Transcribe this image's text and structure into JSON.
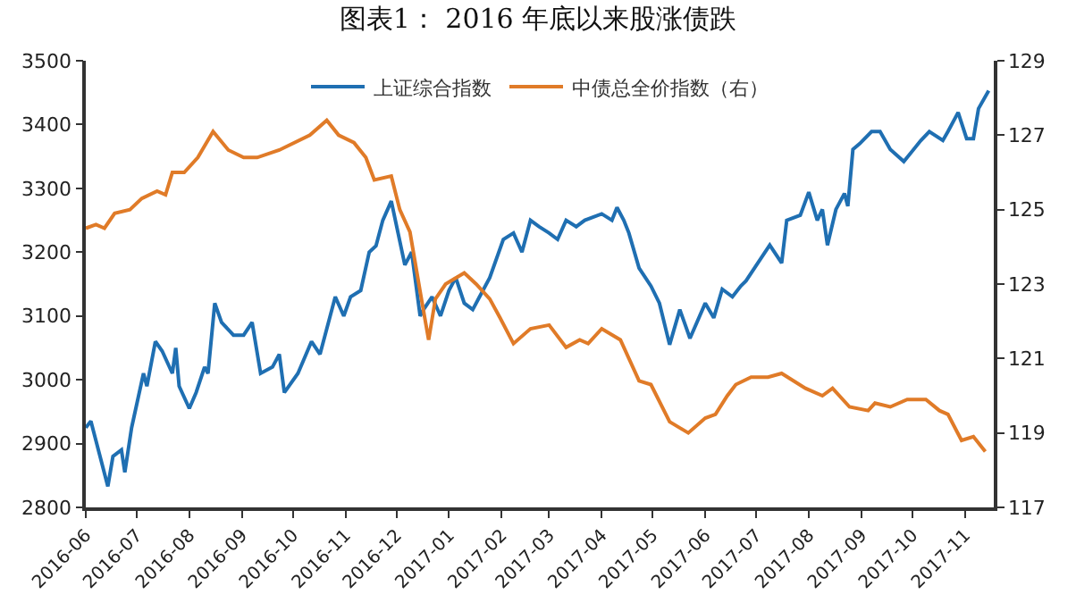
{
  "chart_data": {
    "type": "line",
    "title": "图表1： 2016 年底以来股涨债跌",
    "xlim": [
      "2016-06-01",
      "2017-11-18"
    ],
    "xticks": [
      "2016-06",
      "2016-07",
      "2016-08",
      "2016-09",
      "2016-10",
      "2016-11",
      "2016-12",
      "2017-01",
      "2017-02",
      "2017-03",
      "2017-04",
      "2017-05",
      "2017-06",
      "2017-07",
      "2017-08",
      "2017-09",
      "2017-10",
      "2017-11"
    ],
    "ylim": [
      2800,
      3500
    ],
    "yticks": [
      2800,
      2900,
      3000,
      3100,
      3200,
      3300,
      3400,
      3500
    ],
    "y2lim": [
      117,
      129
    ],
    "y2ticks": [
      117,
      119,
      121,
      123,
      125,
      127,
      129
    ],
    "grid": false,
    "legend": "top",
    "marker": "none",
    "line_style": "solid",
    "series": [
      {
        "name": "上证综合指数",
        "color": "#1f6fb2",
        "x": [
          "2016-06-01",
          "2016-06-04",
          "2016-06-14",
          "2016-06-17",
          "2016-06-22",
          "2016-06-24",
          "2016-06-28",
          "2016-07-05",
          "2016-07-07",
          "2016-07-12",
          "2016-07-16",
          "2016-07-22",
          "2016-07-24",
          "2016-07-26",
          "2016-08-01",
          "2016-08-05",
          "2016-08-10",
          "2016-08-12",
          "2016-08-16",
          "2016-08-20",
          "2016-08-27",
          "2016-09-02",
          "2016-09-07",
          "2016-09-12",
          "2016-09-19",
          "2016-09-23",
          "2016-09-26",
          "2016-10-04",
          "2016-10-12",
          "2016-10-17",
          "2016-10-21",
          "2016-10-26",
          "2016-10-31",
          "2016-11-04",
          "2016-11-10",
          "2016-11-15",
          "2016-11-19",
          "2016-11-23",
          "2016-11-28",
          "2016-12-02",
          "2016-12-06",
          "2016-12-10",
          "2016-12-15",
          "2016-12-17",
          "2016-12-22",
          "2016-12-27",
          "2017-01-01",
          "2017-01-05",
          "2017-01-10",
          "2017-01-15",
          "2017-01-19",
          "2017-01-25",
          "2017-02-02",
          "2017-02-08",
          "2017-02-13",
          "2017-02-18",
          "2017-02-23",
          "2017-03-01",
          "2017-03-06",
          "2017-03-11",
          "2017-03-17",
          "2017-03-22",
          "2017-04-01",
          "2017-04-07",
          "2017-04-10",
          "2017-04-14",
          "2017-04-17",
          "2017-04-23",
          "2017-04-30",
          "2017-05-05",
          "2017-05-11",
          "2017-05-17",
          "2017-05-23",
          "2017-06-01",
          "2017-06-06",
          "2017-06-11",
          "2017-06-17",
          "2017-06-22",
          "2017-06-25",
          "2017-07-02",
          "2017-07-09",
          "2017-07-16",
          "2017-07-19",
          "2017-07-27",
          "2017-08-01",
          "2017-08-06",
          "2017-08-09",
          "2017-08-12",
          "2017-08-17",
          "2017-08-22",
          "2017-08-24",
          "2017-08-27",
          "2017-08-31",
          "2017-09-07",
          "2017-09-12",
          "2017-09-18",
          "2017-09-26",
          "2017-10-06",
          "2017-10-11",
          "2017-10-19",
          "2017-10-22",
          "2017-10-28",
          "2017-11-02",
          "2017-11-06",
          "2017-11-09",
          "2017-11-15"
        ],
        "values": [
          2925,
          2935,
          2833,
          2880,
          2890,
          2855,
          2925,
          3010,
          2990,
          3060,
          3045,
          3010,
          3050,
          2990,
          2955,
          2980,
          3020,
          3010,
          3120,
          3090,
          3070,
          3070,
          3090,
          3010,
          3020,
          3040,
          2980,
          3010,
          3060,
          3040,
          3080,
          3130,
          3100,
          3130,
          3140,
          3200,
          3210,
          3250,
          3280,
          3230,
          3180,
          3200,
          3100,
          3110,
          3130,
          3100,
          3140,
          3160,
          3120,
          3110,
          3130,
          3160,
          3220,
          3230,
          3200,
          3250,
          3240,
          3230,
          3220,
          3250,
          3240,
          3250,
          3260,
          3250,
          3270,
          3250,
          3230,
          3175,
          3147,
          3120,
          3055,
          3110,
          3065,
          3120,
          3097,
          3142,
          3130,
          3147,
          3155,
          3183,
          3211,
          3183,
          3250,
          3258,
          3294,
          3250,
          3267,
          3211,
          3267,
          3292,
          3272,
          3361,
          3370,
          3389,
          3389,
          3361,
          3342,
          3375,
          3389,
          3375,
          3389,
          3419,
          3378,
          3378,
          3425,
          3453
        ]
      },
      {
        "name": "中债总全价指数（右）",
        "color": "#e07b28",
        "axis": "y2",
        "x": [
          "2016-06-01",
          "2016-06-07",
          "2016-06-12",
          "2016-06-18",
          "2016-06-27",
          "2016-07-04",
          "2016-07-13",
          "2016-07-18",
          "2016-07-22",
          "2016-07-29",
          "2016-08-06",
          "2016-08-15",
          "2016-08-24",
          "2016-09-02",
          "2016-09-10",
          "2016-09-23",
          "2016-10-11",
          "2016-10-21",
          "2016-10-28",
          "2016-11-06",
          "2016-11-13",
          "2016-11-18",
          "2016-11-28",
          "2016-12-03",
          "2016-12-09",
          "2016-12-15",
          "2016-12-20",
          "2016-12-24",
          "2016-12-30",
          "2017-01-10",
          "2017-01-17",
          "2017-01-25",
          "2017-01-31",
          "2017-02-08",
          "2017-02-18",
          "2017-03-01",
          "2017-03-11",
          "2017-03-19",
          "2017-03-24",
          "2017-04-01",
          "2017-04-12",
          "2017-04-23",
          "2017-04-30",
          "2017-05-11",
          "2017-05-22",
          "2017-06-01",
          "2017-06-07",
          "2017-06-14",
          "2017-06-19",
          "2017-06-28",
          "2017-07-08",
          "2017-07-16",
          "2017-07-30",
          "2017-08-09",
          "2017-08-15",
          "2017-08-25",
          "2017-09-05",
          "2017-09-09",
          "2017-09-18",
          "2017-09-28",
          "2017-10-09",
          "2017-10-17",
          "2017-10-22",
          "2017-10-30",
          "2017-11-06",
          "2017-11-13"
        ],
        "values": [
          124.5,
          124.6,
          124.5,
          124.9,
          125.0,
          125.3,
          125.5,
          125.4,
          126.0,
          126.0,
          126.4,
          127.1,
          126.6,
          126.4,
          126.4,
          126.6,
          127.0,
          127.4,
          127.0,
          126.8,
          126.4,
          125.8,
          125.9,
          125.0,
          124.4,
          122.8,
          121.5,
          122.6,
          123.0,
          123.3,
          123.0,
          122.6,
          122.1,
          121.4,
          121.8,
          121.9,
          121.3,
          121.5,
          121.4,
          121.8,
          121.5,
          120.4,
          120.3,
          119.3,
          119.0,
          119.4,
          119.5,
          120.0,
          120.3,
          120.5,
          120.5,
          120.6,
          120.2,
          120.0,
          120.2,
          119.7,
          119.6,
          119.8,
          119.7,
          119.9,
          119.9,
          119.6,
          119.5,
          118.8,
          118.9,
          118.5
        ]
      }
    ]
  }
}
